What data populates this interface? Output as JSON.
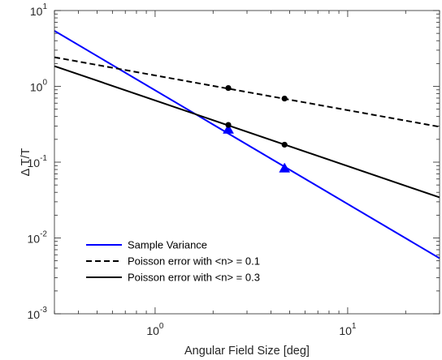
{
  "chart_data": {
    "type": "line",
    "xlabel": "Angular Field Size [deg]",
    "ylabel": "Δ T/T",
    "xscale": "log",
    "yscale": "log",
    "xlim": [
      0.3,
      30
    ],
    "ylim": [
      0.001,
      10
    ],
    "grid": false,
    "legend_position": "bottom-left",
    "x_ticks": [
      {
        "value": 1,
        "base": "10",
        "exp": "0"
      },
      {
        "value": 10,
        "base": "10",
        "exp": "1"
      }
    ],
    "y_ticks": [
      {
        "value": 0.001,
        "base": "10",
        "exp": "-3"
      },
      {
        "value": 0.01,
        "base": "10",
        "exp": "-2"
      },
      {
        "value": 0.1,
        "base": "10",
        "exp": "-1"
      },
      {
        "value": 1,
        "base": "10",
        "exp": "0"
      },
      {
        "value": 10,
        "base": "10",
        "exp": "1"
      }
    ],
    "series": [
      {
        "name": "Sample Variance",
        "color": "#0000ff",
        "line_style": "solid",
        "x": [
          0.3,
          30
        ],
        "y": [
          5.4,
          0.0054
        ],
        "markers": {
          "shape": "triangle",
          "x": [
            2.4,
            4.7
          ],
          "y": [
            0.27,
            0.083
          ]
        }
      },
      {
        "name": "Poisson error with <n> = 0.1",
        "color": "#000000",
        "line_style": "dashed",
        "x": [
          0.3,
          30
        ],
        "y": [
          2.42,
          0.293
        ],
        "markers": {
          "shape": "circle",
          "x": [
            2.4,
            4.7
          ],
          "y": [
            0.95,
            0.69
          ]
        }
      },
      {
        "name": "Poisson error with <n> = 0.3",
        "color": "#000000",
        "line_style": "solid",
        "x": [
          0.3,
          30
        ],
        "y": [
          1.85,
          0.0343
        ],
        "markers": {
          "shape": "circle",
          "x": [
            2.4,
            4.7
          ],
          "y": [
            0.31,
            0.17
          ]
        }
      }
    ]
  }
}
